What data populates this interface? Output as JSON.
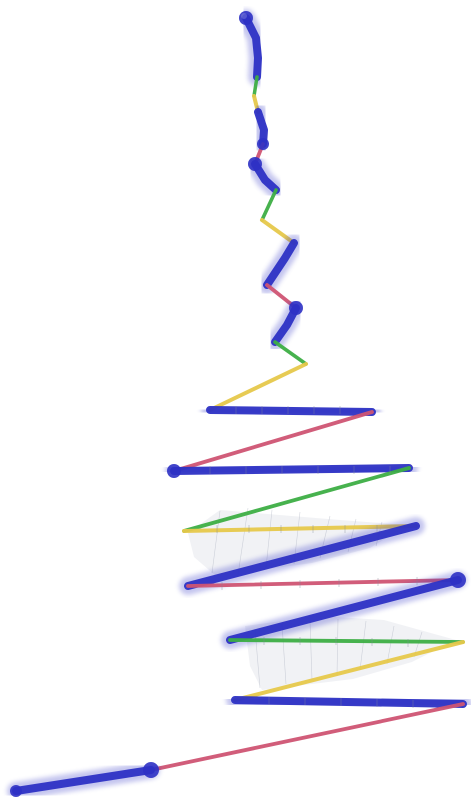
{
  "image": {
    "kind": "3d-spiral-helix-rendering",
    "background": "#ffffff"
  },
  "colors": {
    "blue": "#2d31c4",
    "red": "#cf5473",
    "green": "#3dae45",
    "yellow": "#e6c84b",
    "gray": "#cfd4de"
  }
}
